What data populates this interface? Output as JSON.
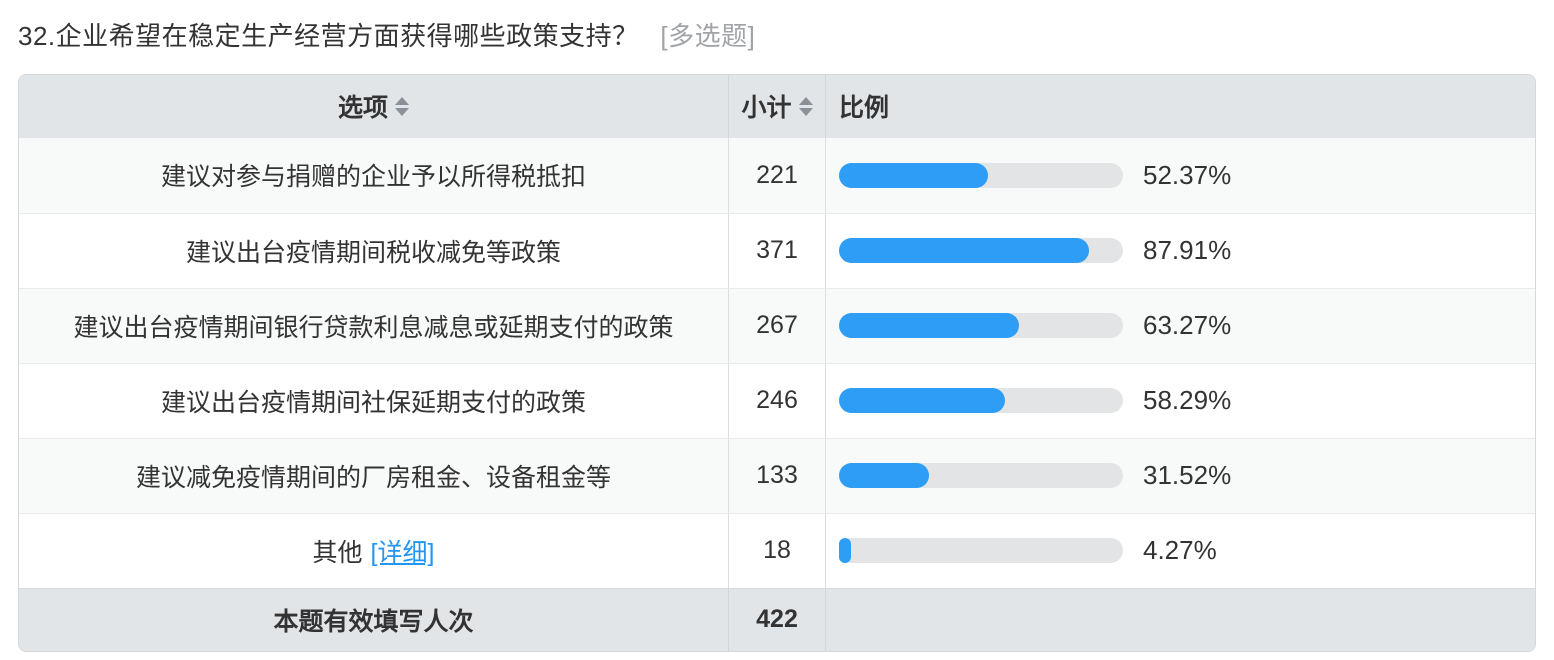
{
  "title": {
    "text": "32.企业希望在稳定生产经营方面获得哪些政策支持？",
    "tag": "[多选题]"
  },
  "table": {
    "headers": {
      "option": "选项",
      "subtotal": "小计",
      "ratio": "比例"
    },
    "rows": [
      {
        "option": "建议对参与捐赠的企业予以所得税抵扣",
        "detail_link": "",
        "subtotal": "221",
        "percent": "52.37%",
        "value": 52.37
      },
      {
        "option": "建议出台疫情期间税收减免等政策",
        "detail_link": "",
        "subtotal": "371",
        "percent": "87.91%",
        "value": 87.91
      },
      {
        "option": "建议出台疫情期间银行贷款利息减息或延期支付的政策",
        "detail_link": "",
        "subtotal": "267",
        "percent": "63.27%",
        "value": 63.27
      },
      {
        "option": "建议出台疫情期间社保延期支付的政策",
        "detail_link": "",
        "subtotal": "246",
        "percent": "58.29%",
        "value": 58.29
      },
      {
        "option": "建议减免疫情期间的厂房租金、设备租金等",
        "detail_link": "",
        "subtotal": "133",
        "percent": "31.52%",
        "value": 31.52
      },
      {
        "option": "其他",
        "detail_link": "[详细]",
        "subtotal": "18",
        "percent": "4.27%",
        "value": 4.27
      }
    ],
    "footer": {
      "label": "本题有效填写人次",
      "subtotal": "422"
    }
  },
  "icons": {
    "sort": "sort-up-down-icon"
  },
  "colors": {
    "bar_fill": "#2e9df5",
    "bar_track": "#e2e4e5",
    "header_bg": "#e2e5e8",
    "row_alt_bg": "#f8f9f9",
    "link": "#2196f3",
    "tag_text": "#a0a4a8"
  },
  "chart_data": {
    "type": "bar",
    "title": "32.企业希望在稳定生产经营方面获得哪些政策支持？",
    "categories": [
      "建议对参与捐赠的企业予以所得税抵扣",
      "建议出台疫情期间税收减免等政策",
      "建议出台疫情期间银行贷款利息减息或延期支付的政策",
      "建议出台疫情期间社保延期支付的政策",
      "建议减免疫情期间的厂房租金、设备租金等",
      "其他"
    ],
    "series": [
      {
        "name": "小计",
        "values": [
          221,
          371,
          267,
          246,
          133,
          18
        ]
      },
      {
        "name": "比例(%)",
        "values": [
          52.37,
          87.91,
          63.27,
          58.29,
          31.52,
          4.27
        ]
      }
    ],
    "total_label": "本题有效填写人次",
    "total": 422,
    "xlim": [
      0,
      100
    ],
    "orientation": "horizontal"
  }
}
